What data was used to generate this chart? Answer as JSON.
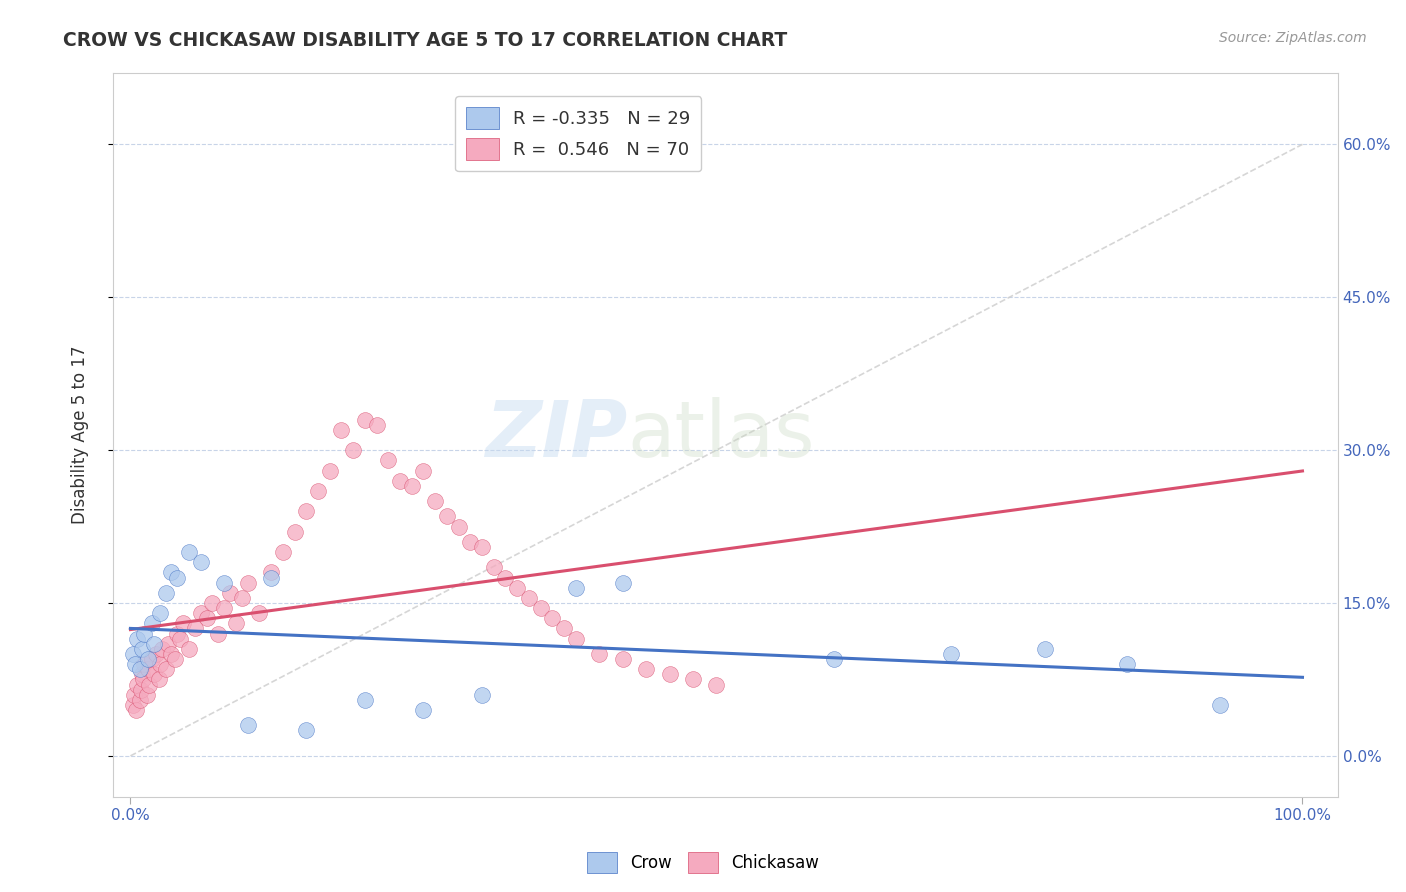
{
  "title": "CROW VS CHICKASAW DISABILITY AGE 5 TO 17 CORRELATION CHART",
  "source": "Source: ZipAtlas.com",
  "ylabel": "Disability Age 5 to 17",
  "crow_R": -0.335,
  "crow_N": 29,
  "chickasaw_R": 0.546,
  "chickasaw_N": 70,
  "crow_color": "#adc9ed",
  "chickasaw_color": "#f5aabf",
  "crow_line_color": "#4472c4",
  "chickasaw_line_color": "#d94f6e",
  "diagonal_color": "#cccccc",
  "background_color": "#ffffff",
  "grid_color": "#c8d4e8",
  "watermark_zip": "ZIP",
  "watermark_atlas": "atlas",
  "crow_x": [
    0.2,
    0.4,
    0.6,
    0.8,
    1.0,
    1.2,
    1.5,
    1.8,
    2.0,
    2.5,
    3.0,
    3.5,
    4.0,
    5.0,
    6.0,
    8.0,
    10.0,
    12.0,
    15.0,
    20.0,
    25.0,
    30.0,
    38.0,
    42.0,
    60.0,
    70.0,
    78.0,
    85.0,
    93.0
  ],
  "crow_y": [
    10.0,
    9.0,
    11.5,
    8.5,
    10.5,
    12.0,
    9.5,
    13.0,
    11.0,
    14.0,
    16.0,
    18.0,
    17.5,
    20.0,
    19.0,
    17.0,
    3.0,
    17.5,
    2.5,
    5.5,
    4.5,
    6.0,
    16.5,
    17.0,
    9.5,
    10.0,
    10.5,
    9.0,
    5.0
  ],
  "chickasaw_x": [
    0.2,
    0.3,
    0.5,
    0.6,
    0.8,
    0.9,
    1.0,
    1.1,
    1.2,
    1.4,
    1.5,
    1.6,
    1.8,
    2.0,
    2.2,
    2.4,
    2.5,
    2.7,
    3.0,
    3.2,
    3.5,
    3.8,
    4.0,
    4.2,
    4.5,
    5.0,
    5.5,
    6.0,
    6.5,
    7.0,
    7.5,
    8.0,
    8.5,
    9.0,
    9.5,
    10.0,
    11.0,
    12.0,
    13.0,
    14.0,
    15.0,
    16.0,
    17.0,
    18.0,
    19.0,
    20.0,
    21.0,
    22.0,
    23.0,
    24.0,
    25.0,
    26.0,
    27.0,
    28.0,
    29.0,
    30.0,
    31.0,
    32.0,
    33.0,
    34.0,
    35.0,
    36.0,
    37.0,
    38.0,
    40.0,
    42.0,
    44.0,
    46.0,
    48.0,
    50.0
  ],
  "chickasaw_y": [
    5.0,
    6.0,
    4.5,
    7.0,
    5.5,
    6.5,
    8.0,
    7.5,
    9.0,
    6.0,
    8.5,
    7.0,
    9.5,
    8.0,
    10.0,
    7.5,
    9.0,
    10.5,
    8.5,
    11.0,
    10.0,
    9.5,
    12.0,
    11.5,
    13.0,
    10.5,
    12.5,
    14.0,
    13.5,
    15.0,
    12.0,
    14.5,
    16.0,
    13.0,
    15.5,
    17.0,
    14.0,
    18.0,
    20.0,
    22.0,
    24.0,
    26.0,
    28.0,
    32.0,
    30.0,
    33.0,
    32.5,
    29.0,
    27.0,
    26.5,
    28.0,
    25.0,
    23.5,
    22.5,
    21.0,
    20.5,
    18.5,
    17.5,
    16.5,
    15.5,
    14.5,
    13.5,
    12.5,
    11.5,
    10.0,
    9.5,
    8.5,
    8.0,
    7.5,
    7.0
  ],
  "xlim": [
    -1.5,
    103
  ],
  "ylim": [
    -4,
    67
  ],
  "ytick_vals": [
    0,
    15,
    30,
    45,
    60
  ],
  "ytick_pcts": [
    "0.0%",
    "15.0%",
    "30.0%",
    "45.0%",
    "60.0%"
  ],
  "xtick_vals": [
    0,
    100
  ],
  "xtick_pcts": [
    "0.0%",
    "100.0%"
  ]
}
